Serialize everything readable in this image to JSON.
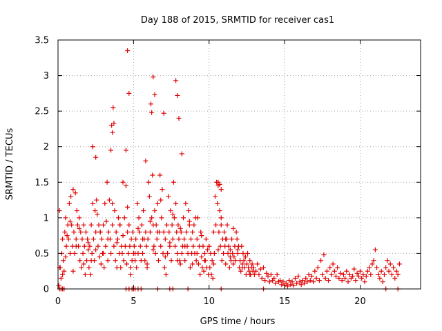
{
  "chart_data": {
    "type": "scatter",
    "title": "Day 188 of 2015, SRMTID for receiver cas1",
    "xlabel": "GPS time / hours",
    "ylabel": "SRMTID / TECUs",
    "xlim": [
      0,
      24
    ],
    "ylim": [
      0,
      3.5
    ],
    "grid": true,
    "marker": "+",
    "color": "#e00000",
    "xticks": [
      0,
      5,
      10,
      15,
      20
    ],
    "xtick_labels": [
      "0",
      "5",
      "10",
      "15",
      "20"
    ],
    "yticks": [
      0,
      0.5,
      1,
      1.5,
      2,
      2.5,
      3,
      3.5
    ],
    "ytick_labels": [
      "0",
      "0.5",
      "1",
      "1.5",
      "2",
      "2.5",
      "3",
      "3.5"
    ],
    "series": [
      {
        "name": "cas1",
        "x": [
          0.05,
          0.1,
          0.15,
          0.2,
          0.25,
          0.3,
          0.35,
          0.4,
          0.45,
          0.5,
          0.55,
          0.6,
          0.65,
          0.7,
          0.75,
          0.8,
          0.85,
          0.9,
          0.95,
          1.0,
          1.05,
          1.1,
          1.15,
          1.2,
          1.25,
          1.3,
          1.35,
          1.4,
          1.45,
          1.5,
          1.55,
          1.6,
          1.65,
          1.7,
          1.75,
          1.8,
          1.85,
          1.9,
          1.95,
          2.0,
          2.05,
          2.1,
          2.15,
          2.2,
          2.25,
          2.3,
          2.35,
          2.4,
          2.45,
          2.5,
          2.55,
          2.6,
          2.65,
          2.7,
          2.75,
          2.8,
          2.85,
          2.9,
          2.95,
          3.0,
          3.05,
          3.1,
          3.15,
          3.2,
          3.25,
          3.3,
          3.35,
          3.4,
          3.45,
          3.5,
          3.55,
          3.6,
          3.65,
          3.7,
          3.75,
          3.8,
          3.85,
          3.9,
          3.95,
          4.0,
          4.05,
          4.1,
          4.15,
          4.2,
          4.25,
          4.3,
          4.35,
          4.4,
          4.45,
          4.5,
          4.55,
          4.6,
          4.65,
          4.7,
          4.75,
          4.8,
          4.85,
          4.9,
          4.95,
          5.0,
          5.05,
          5.1,
          5.15,
          5.2,
          5.25,
          5.3,
          5.35,
          5.4,
          5.45,
          5.5,
          5.55,
          5.6,
          5.65,
          5.7,
          5.75,
          5.8,
          5.85,
          5.9,
          5.95,
          6.0,
          6.05,
          6.1,
          6.15,
          6.2,
          6.25,
          6.3,
          6.35,
          6.4,
          6.45,
          6.5,
          6.55,
          6.6,
          6.65,
          6.7,
          6.75,
          6.8,
          6.85,
          6.9,
          6.95,
          7.0,
          7.05,
          7.1,
          7.15,
          7.2,
          7.25,
          7.3,
          7.35,
          7.4,
          7.45,
          7.5,
          7.55,
          7.6,
          7.65,
          7.7,
          7.75,
          7.8,
          7.85,
          7.9,
          7.95,
          8.0,
          8.05,
          8.1,
          8.15,
          8.2,
          8.25,
          8.3,
          8.35,
          8.4,
          8.45,
          8.5,
          8.55,
          8.6,
          8.65,
          8.7,
          8.75,
          8.8,
          8.85,
          8.9,
          8.95,
          9.0,
          9.05,
          9.1,
          9.15,
          9.2,
          9.25,
          9.3,
          9.35,
          9.4,
          9.45,
          9.5,
          9.55,
          9.6,
          9.65,
          9.7,
          9.75,
          9.8,
          9.85,
          9.9,
          9.95,
          10.0,
          10.05,
          10.1,
          10.15,
          10.2,
          10.25,
          10.3,
          10.35,
          10.4,
          10.45,
          10.5,
          10.55,
          10.6,
          10.65,
          10.7,
          10.75,
          10.8,
          10.85,
          10.9,
          10.95,
          11.0,
          11.05,
          11.1,
          11.15,
          11.2,
          11.25,
          11.3,
          11.35,
          11.4,
          11.45,
          11.5,
          11.55,
          11.6,
          11.65,
          11.7,
          11.75,
          11.8,
          11.85,
          11.9,
          11.95,
          12.0,
          12.05,
          12.1,
          12.15,
          12.2,
          12.25,
          12.3,
          12.35,
          12.4,
          12.45,
          12.5,
          12.55,
          12.6,
          12.65,
          12.7,
          12.75,
          12.8,
          12.85,
          12.9,
          12.95,
          13.0,
          13.1,
          13.2,
          13.3,
          13.4,
          13.5,
          13.6,
          13.7,
          13.8,
          13.9,
          14.0,
          14.1,
          14.2,
          14.3,
          14.4,
          14.5,
          14.6,
          14.7,
          14.8,
          14.9,
          15.0,
          15.1,
          15.2,
          15.3,
          15.4,
          15.5,
          15.6,
          15.7,
          15.8,
          15.9,
          16.0,
          16.1,
          16.2,
          16.3,
          16.4,
          16.5,
          16.6,
          16.7,
          16.8,
          16.9,
          17.0,
          17.1,
          17.2,
          17.3,
          17.4,
          17.5,
          17.6,
          17.7,
          17.8,
          17.9,
          18.0,
          18.1,
          18.2,
          18.3,
          18.4,
          18.5,
          18.6,
          18.7,
          18.8,
          18.9,
          19.0,
          19.1,
          19.2,
          19.3,
          19.4,
          19.5,
          19.6,
          19.7,
          19.8,
          19.9,
          20.0,
          20.1,
          20.2,
          20.3,
          20.4,
          20.5,
          20.6,
          20.7,
          20.8,
          20.9,
          21.0,
          21.1,
          21.2,
          21.3,
          21.4,
          21.5,
          21.6,
          21.7,
          21.8,
          21.9,
          22.0,
          22.1,
          22.2,
          22.3,
          22.4,
          22.5,
          22.6,
          0.1,
          0.3,
          0.5,
          0.8,
          1.0,
          1.2,
          1.4,
          1.7,
          2.0,
          2.2,
          2.5,
          2.8,
          3.0,
          3.3,
          3.6,
          3.9,
          4.1,
          4.3,
          4.6,
          4.8,
          5.1,
          5.3,
          5.6,
          5.9,
          6.1,
          6.3,
          6.6,
          6.8,
          7.1,
          7.4,
          7.6,
          7.9,
          8.1,
          8.4,
          8.7,
          8.9,
          9.2,
          9.5,
          9.7,
          10.0,
          10.3,
          10.6,
          10.8,
          11.1,
          11.4,
          11.6,
          11.9,
          12.2,
          12.4,
          12.7,
          3.6,
          3.7,
          4.5,
          4.6,
          4.7,
          6.2,
          6.3,
          6.4,
          7.0,
          7.8,
          7.9,
          8.0,
          10.6,
          10.7,
          10.8,
          2.3,
          2.5,
          3.5,
          5.8,
          8.2,
          0.1,
          0.2,
          0.3,
          0.4,
          4.5,
          4.7,
          4.9,
          5.0,
          5.1,
          5.3,
          5.5,
          6.6,
          7.4,
          7.6,
          8.6,
          10.8,
          13.6,
          21.7,
          22.5
        ],
        "y": [
          0.05,
          1.1,
          0.3,
          0.15,
          0.5,
          0.2,
          0.4,
          0.25,
          0.8,
          1.0,
          0.6,
          0.75,
          0.9,
          0.7,
          1.2,
          0.5,
          1.3,
          0.9,
          0.6,
          1.4,
          0.8,
          0.5,
          1.35,
          0.7,
          1.1,
          0.9,
          0.6,
          1.0,
          0.4,
          0.8,
          0.3,
          0.7,
          0.5,
          0.9,
          0.6,
          0.2,
          0.8,
          0.4,
          0.7,
          0.55,
          0.3,
          0.6,
          0.2,
          0.9,
          0.5,
          1.2,
          0.7,
          0.4,
          1.1,
          0.8,
          1.25,
          1.05,
          0.6,
          0.9,
          0.45,
          0.8,
          0.35,
          0.7,
          0.5,
          0.9,
          0.3,
          1.2,
          0.6,
          0.95,
          1.5,
          0.4,
          0.8,
          1.25,
          0.7,
          0.5,
          2.3,
          0.9,
          2.55,
          0.6,
          1.1,
          0.4,
          0.8,
          0.3,
          0.7,
          1.0,
          0.5,
          0.9,
          0.3,
          0.6,
          0.5,
          1.5,
          0.4,
          1.0,
          0.6,
          1.45,
          0.35,
          0.8,
          0.5,
          0.9,
          0.6,
          0.3,
          0.7,
          0.4,
          0.8,
          0.5,
          0.6,
          0.4,
          0.7,
          0.3,
          1.2,
          0.5,
          1.0,
          0.8,
          0.6,
          0.4,
          0.9,
          0.5,
          1.1,
          0.7,
          0.4,
          0.8,
          0.6,
          0.3,
          0.7,
          1.5,
          1.3,
          0.8,
          2.6,
          1.0,
          1.6,
          0.9,
          0.6,
          1.1,
          0.5,
          0.9,
          0.7,
          1.2,
          0.4,
          0.8,
          1.6,
          0.6,
          1.0,
          1.4,
          0.5,
          0.8,
          0.3,
          0.7,
          0.2,
          0.9,
          0.5,
          1.3,
          0.8,
          0.6,
          1.1,
          0.4,
          0.9,
          0.7,
          1.5,
          1.0,
          0.6,
          1.2,
          0.8,
          0.5,
          0.9,
          0.7,
          0.4,
          0.35,
          0.8,
          0.5,
          0.6,
          1.0,
          0.7,
          0.4,
          1.2,
          0.8,
          0.6,
          0.5,
          1.1,
          0.9,
          0.3,
          0.7,
          0.5,
          0.8,
          0.6,
          0.9,
          0.5,
          1.0,
          0.4,
          0.7,
          1.0,
          0.35,
          0.6,
          0.2,
          0.8,
          0.45,
          0.3,
          0.6,
          0.25,
          0.5,
          0.4,
          0.7,
          0.3,
          0.55,
          0.2,
          0.6,
          0.3,
          0.5,
          0.2,
          0.4,
          0.15,
          0.35,
          0.5,
          1.3,
          0.9,
          1.5,
          1.2,
          1.45,
          0.8,
          1.1,
          0.6,
          0.9,
          0.4,
          0.7,
          0.5,
          0.8,
          0.6,
          0.35,
          0.7,
          0.9,
          0.5,
          0.6,
          0.3,
          0.55,
          0.4,
          0.7,
          0.5,
          0.85,
          0.45,
          0.6,
          0.4,
          0.8,
          0.7,
          0.5,
          0.6,
          0.3,
          0.4,
          0.25,
          0.6,
          0.35,
          0.5,
          0.4,
          0.3,
          0.45,
          0.2,
          0.35,
          0.5,
          0.3,
          0.25,
          0.4,
          0.2,
          0.3,
          0.35,
          0.25,
          0.3,
          0.2,
          0.25,
          0.35,
          0.2,
          0.28,
          0.15,
          0.3,
          0.12,
          0.22,
          0.18,
          0.1,
          0.2,
          0.12,
          0.15,
          0.08,
          0.2,
          0.1,
          0.12,
          0.06,
          0.1,
          0.05,
          0.08,
          0.04,
          0.12,
          0.06,
          0.1,
          0.05,
          0.15,
          0.08,
          0.18,
          0.1,
          0.06,
          0.12,
          0.08,
          0.15,
          0.1,
          0.2,
          0.12,
          0.18,
          0.1,
          0.25,
          0.15,
          0.3,
          0.12,
          0.4,
          0.2,
          0.48,
          0.15,
          0.25,
          0.12,
          0.3,
          0.2,
          0.35,
          0.25,
          0.18,
          0.3,
          0.15,
          0.22,
          0.12,
          0.2,
          0.15,
          0.25,
          0.1,
          0.2,
          0.15,
          0.18,
          0.28,
          0.12,
          0.22,
          0.18,
          0.25,
          0.15,
          0.2,
          0.1,
          0.18,
          0.25,
          0.3,
          0.2,
          0.35,
          0.4,
          0.55,
          0.3,
          0.2,
          0.15,
          0.25,
          0.1,
          0.2,
          0.3,
          0.4,
          0.25,
          0.35,
          0.2,
          0.3,
          0.15,
          0.25,
          0.2,
          0.35,
          0.3,
          0.7,
          0.45,
          0.95,
          0.25,
          0.6,
          0.85,
          0.35,
          0.65,
          0.4,
          0.55,
          0.8,
          0.5,
          0.7,
          1.2,
          0.65,
          0.9,
          0.75,
          1.15,
          0.2,
          0.5,
          0.85,
          0.7,
          0.35,
          0.95,
          0.55,
          0.8,
          1.25,
          0.45,
          0.65,
          1.05,
          0.4,
          0.85,
          0.6,
          0.95,
          0.35,
          0.5,
          0.75,
          0.4,
          0.6,
          0.8,
          0.55,
          1.0,
          0.7,
          0.45,
          0.35,
          0.55,
          0.3,
          0.45,
          0.2,
          2.2,
          2.33,
          1.95,
          3.35,
          2.75,
          2.48,
          2.98,
          2.73,
          2.47,
          2.93,
          2.72,
          2.4,
          1.5,
          1.47,
          1.4,
          2.0,
          1.85,
          1.95,
          1.8,
          1.9,
          0.0,
          0.0,
          0.0,
          0.0,
          0.0,
          0.0,
          0.0,
          0.0,
          0.0,
          0.0,
          0.0,
          0.0,
          0.0,
          0.0,
          0.0,
          0.0,
          0.0,
          0.0,
          0.0
        ]
      }
    ]
  }
}
